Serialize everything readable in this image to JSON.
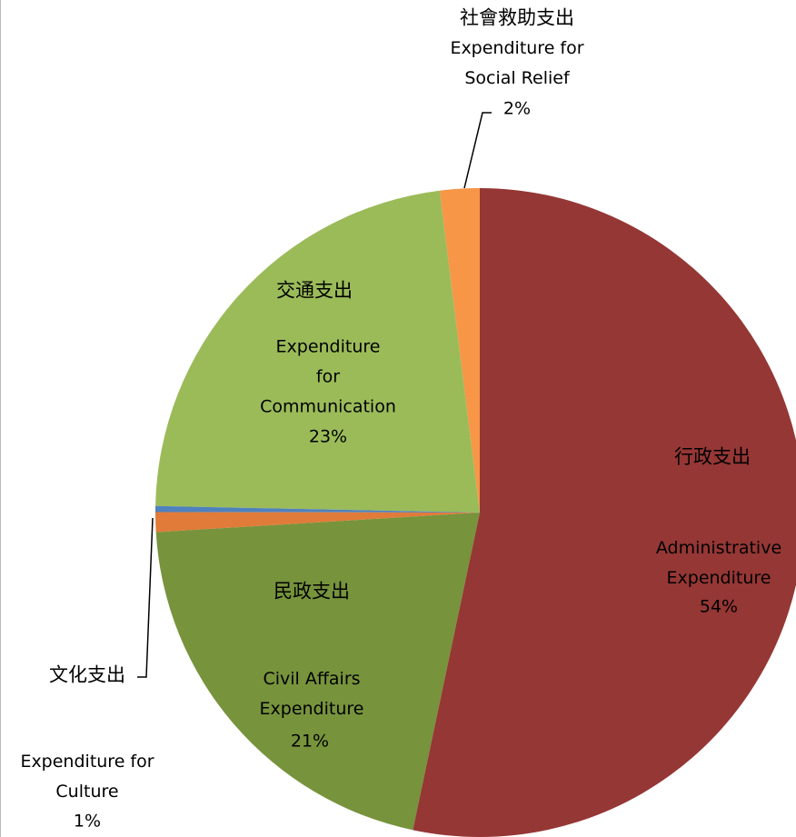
{
  "chart_data": {
    "type": "pie",
    "categories_zh": [
      "行政支出",
      "民政支出",
      "文化支出",
      null,
      "交通支出",
      "社會救助支出"
    ],
    "categories_en": [
      "Administrative\nExpenditure",
      "Civil Affairs\nExpenditure",
      "Expenditure for\nCulture",
      null,
      "Expenditure\nfor\nCommunication",
      "Expenditure for\nSocial Relief"
    ],
    "values": [
      54,
      21,
      1,
      0.3,
      23,
      2
    ],
    "value_labels": [
      "54%",
      "21%",
      "1%",
      null,
      "23%",
      "2%"
    ],
    "colors": [
      "#953735",
      "#77933c",
      "#e07b39",
      "#4f81bd",
      "#9bbb59",
      "#f79646"
    ]
  }
}
